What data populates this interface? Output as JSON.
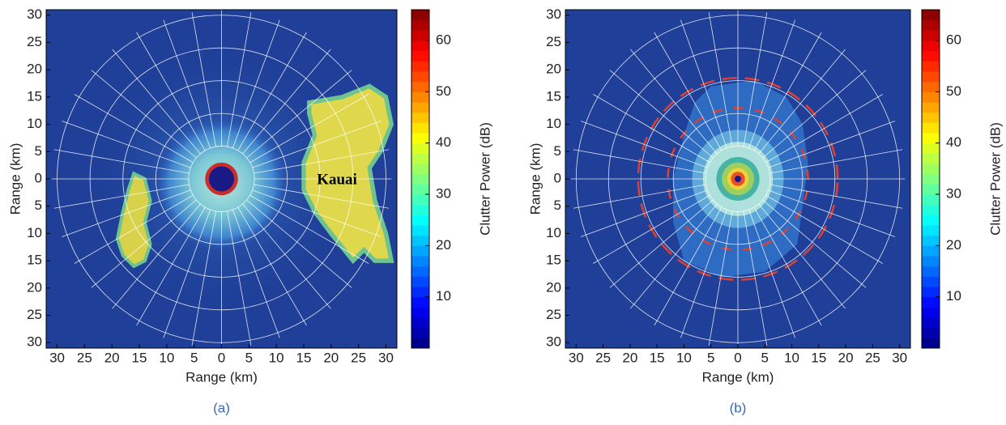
{
  "chart_data": [
    {
      "type": "heatmap",
      "colormap": "jet",
      "xlabel": "Range (km)",
      "ylabel": "Range (km)",
      "caption": "(a)",
      "annotations": [
        "Kauai"
      ],
      "xlim": [
        -32,
        32
      ],
      "ylim": [
        -31,
        31
      ],
      "xticks": [
        {
          "value": -30,
          "label": "30"
        },
        {
          "value": -25,
          "label": "25"
        },
        {
          "value": -20,
          "label": "20"
        },
        {
          "value": -15,
          "label": "15"
        },
        {
          "value": -10,
          "label": "10"
        },
        {
          "value": -5,
          "label": "5"
        },
        0,
        5,
        10,
        15,
        20,
        25,
        30
      ],
      "yticks": [
        30,
        25,
        20,
        15,
        10,
        5,
        0,
        {
          "value": -5,
          "label": "5"
        },
        {
          "value": -10,
          "label": "10"
        },
        {
          "value": -15,
          "label": "15"
        },
        {
          "value": -20,
          "label": "20"
        },
        {
          "value": -25,
          "label": "25"
        },
        {
          "value": -30,
          "label": "30"
        }
      ],
      "colorbar": {
        "label": "Clutter Power (dB)",
        "lim": [
          0,
          66
        ],
        "ticks": [
          10,
          20,
          30,
          40,
          50,
          60
        ]
      }
    },
    {
      "type": "heatmap",
      "colormap": "jet",
      "xlabel": "Range (km)",
      "ylabel": "Range (km)",
      "caption": "(b)",
      "xlim": [
        -32,
        32
      ],
      "ylim": [
        -31,
        31
      ],
      "xticks": [
        {
          "value": -30,
          "label": "30"
        },
        {
          "value": -25,
          "label": "25"
        },
        {
          "value": -20,
          "label": "20"
        },
        {
          "value": -15,
          "label": "15"
        },
        {
          "value": -10,
          "label": "10"
        },
        {
          "value": -5,
          "label": "5"
        },
        0,
        5,
        10,
        15,
        20,
        25,
        30
      ],
      "yticks": [
        30,
        25,
        20,
        15,
        10,
        5,
        0,
        {
          "value": -5,
          "label": "5"
        },
        {
          "value": -10,
          "label": "10"
        },
        {
          "value": -15,
          "label": "15"
        },
        {
          "value": -20,
          "label": "20"
        },
        {
          "value": -25,
          "label": "25"
        },
        {
          "value": -30,
          "label": "30"
        }
      ],
      "colorbar": {
        "label": "Clutter Power (dB)",
        "lim": [
          0,
          66
        ],
        "ticks": [
          10,
          20,
          30,
          40,
          50,
          60
        ]
      }
    }
  ]
}
